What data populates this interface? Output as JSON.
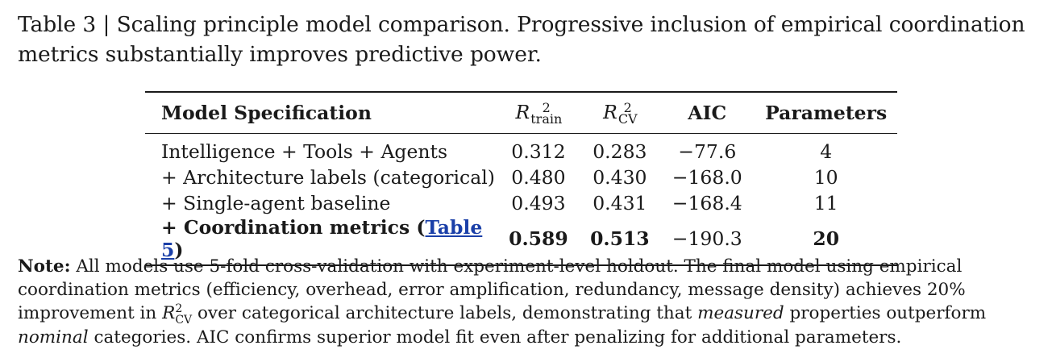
{
  "caption": {
    "text": "Table 3 | Scaling principle model comparison. Progressive inclusion of empirical coordination metrics substantially improves predictive power."
  },
  "table": {
    "headers": {
      "model": "Model Specification",
      "r2_train": {
        "base": "R",
        "sup": "2",
        "sub": "train"
      },
      "r2_cv": {
        "base": "R",
        "sup": "2",
        "sub": "CV"
      },
      "aic": "AIC",
      "params": "Parameters"
    },
    "rows": [
      {
        "model": "Intelligence + Tools + Agents",
        "r2_train": "0.312",
        "r2_cv": "0.283",
        "aic": "−77.6",
        "params": "4",
        "bold": false
      },
      {
        "model": "+ Architecture labels (categorical)",
        "r2_train": "0.480",
        "r2_cv": "0.430",
        "aic": "−168.0",
        "params": "10",
        "bold": false
      },
      {
        "model": "+ Single-agent baseline",
        "r2_train": "0.493",
        "r2_cv": "0.431",
        "aic": "−168.4",
        "params": "11",
        "bold": false
      },
      {
        "model_prefix": "+ Coordination metrics (",
        "model_link": "Table 5",
        "model_suffix": ")",
        "r2_train": "0.589",
        "r2_cv": "0.513",
        "aic": "−190.3",
        "params": "20",
        "bold": true
      }
    ]
  },
  "note": {
    "label": "Note:",
    "part1": " All models use 5-fold cross-validation with experiment-level holdout. The final model using empirical coordination metrics (efficiency, overhead, error amplification, redundancy, message density) achieves 20% improvement in ",
    "math_base": "R",
    "math_sup": "2",
    "math_sub": "CV",
    "part2": " over categorical architecture labels, demonstrating that ",
    "em1": "measured",
    "part3": " properties outperform ",
    "em2": "nominal",
    "part4": " categories.  AIC confirms superior model fit even after penalizing for additional parameters."
  }
}
